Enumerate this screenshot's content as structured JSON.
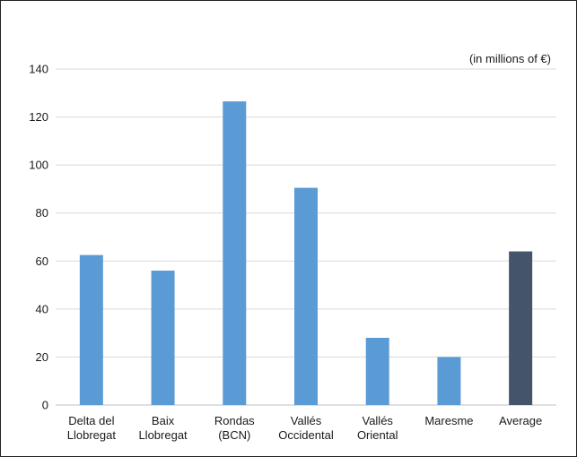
{
  "chart_data": {
    "type": "bar",
    "unit_note": "(in millions of €)",
    "categories": [
      [
        "Delta del",
        "Llobregat"
      ],
      [
        "Baix",
        "Llobregat"
      ],
      [
        "Rondas",
        "(BCN)"
      ],
      [
        "Vallés",
        "Occidental"
      ],
      [
        "Vallés",
        "Oriental"
      ],
      [
        "Maresme"
      ],
      [
        "Average"
      ]
    ],
    "values": [
      62.5,
      56,
      126.5,
      90.5,
      28,
      20,
      64
    ],
    "ylim": [
      0,
      140
    ],
    "yticks": [
      0,
      20,
      40,
      60,
      80,
      100,
      120,
      140
    ],
    "grid": true,
    "colors": {
      "bar": "#5b9bd5",
      "highlight": "#44546a",
      "grid": "#d9d9d9",
      "axis": "#bfbfbf"
    },
    "highlight_index": 6
  }
}
